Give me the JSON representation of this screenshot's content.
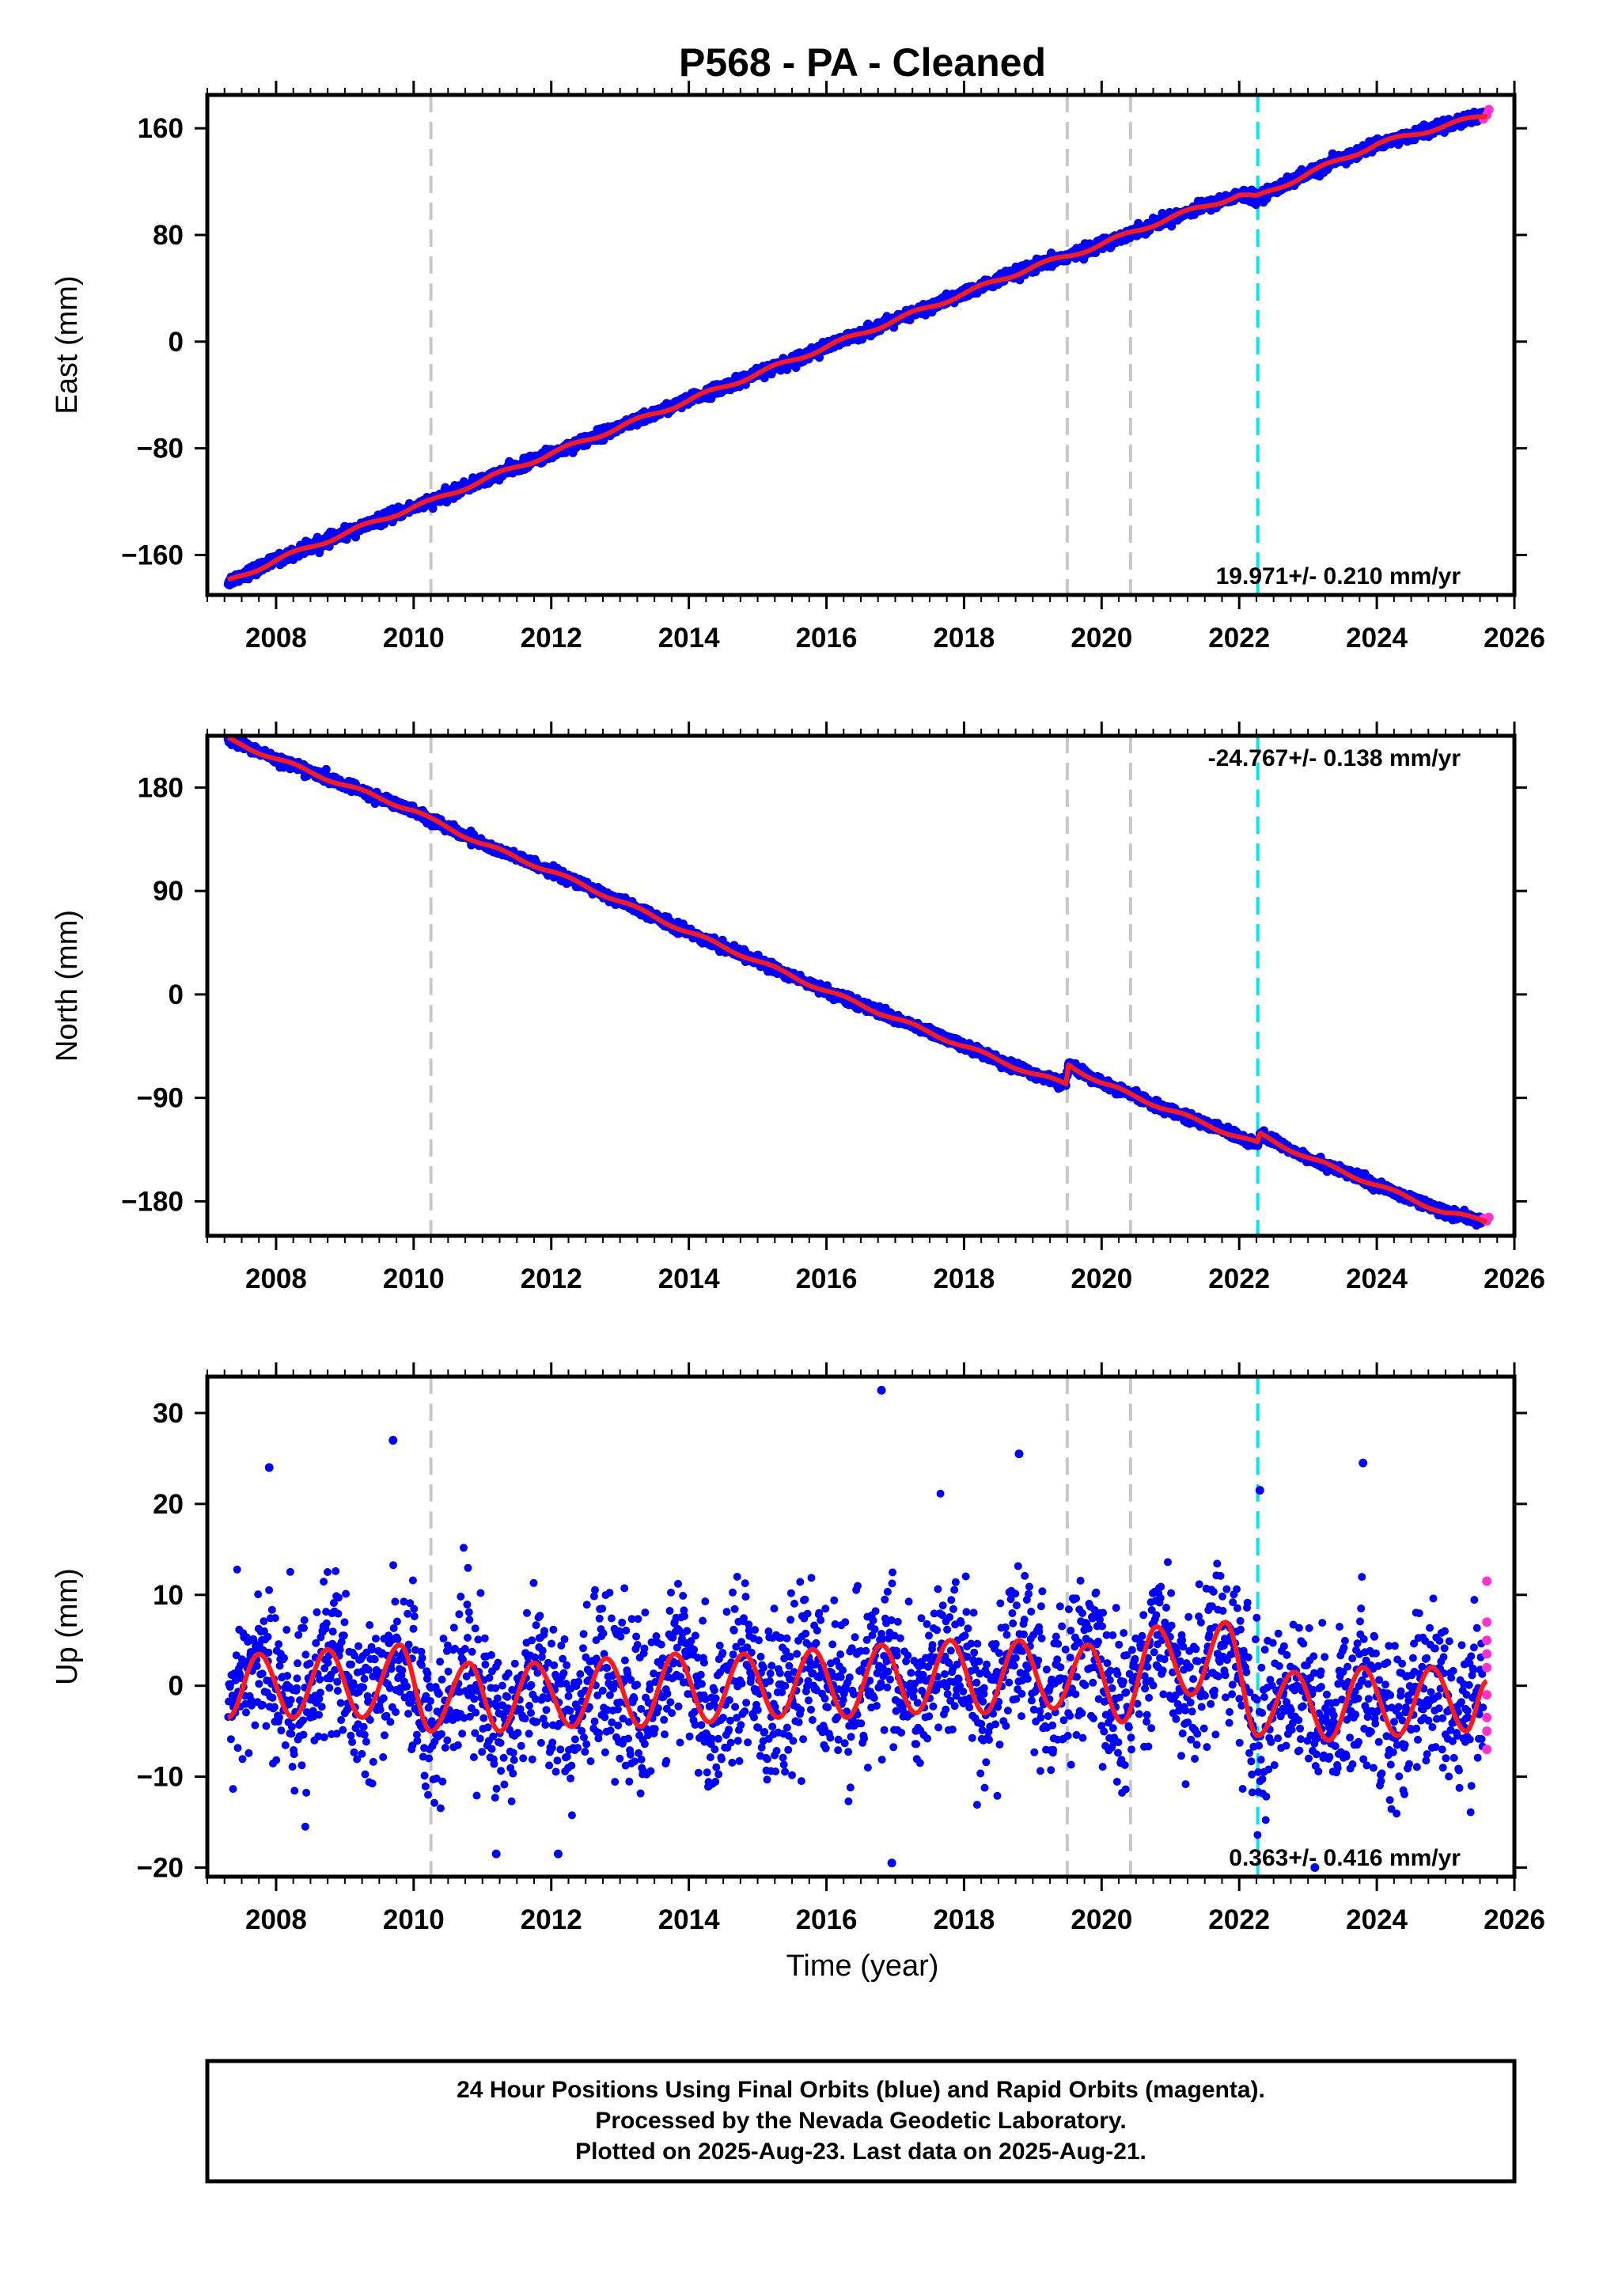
{
  "page_title": "P568  - PA - Cleaned",
  "x_axis_label": "Time (year)",
  "footer": {
    "line1": "24 Hour Positions Using Final Orbits (blue) and Rapid Orbits (magenta).",
    "line2": "Processed by the Nevada Geodetic Laboratory.",
    "line3": "Plotted on 2025-Aug-23. Last data on 2025-Aug-21."
  },
  "colors": {
    "final_orbits": "#0000ff",
    "rapid_orbits": "#ff33cc",
    "model": "#ff1a1a",
    "equipment_change": "#c8c8c8",
    "earthquake": "#00e5ee"
  },
  "chart_data": [
    {
      "type": "scatter",
      "component": "East",
      "ylabel": "East (mm)",
      "xlim": [
        2007.0,
        2026.0
      ],
      "ylim": [
        -190,
        185
      ],
      "x_ticks": [
        2008,
        2010,
        2012,
        2014,
        2016,
        2018,
        2020,
        2022,
        2024,
        2026
      ],
      "y_ticks": [
        -160,
        -80,
        0,
        80,
        160
      ],
      "rate_label": "19.971+/- 0.210 mm/yr",
      "rate_position": "bottom-right",
      "series": [
        {
          "kind": "final_orbits_points",
          "x": [
            2007.3,
            2008.0,
            2009.0,
            2010.0,
            2010.25,
            2011.0,
            2012.0,
            2013.0,
            2014.0,
            2015.0,
            2016.0,
            2017.0,
            2018.0,
            2019.0,
            2019.5,
            2020.0,
            2021.0,
            2022.0,
            2022.25,
            2023.0,
            2024.0,
            2025.0,
            2025.6
          ],
          "y": [
            -180,
            -163,
            -143,
            -124,
            -120,
            -104,
            -84,
            -64,
            -44,
            -24,
            -4,
            16,
            36,
            56,
            64,
            73,
            93,
            110,
            108,
            126,
            148,
            163,
            172
          ]
        },
        {
          "kind": "rapid_orbits_points",
          "x": [
            2025.55,
            2025.6,
            2025.63
          ],
          "y": [
            167,
            170,
            174
          ]
        },
        {
          "kind": "model_fit",
          "x": [
            2007.3,
            2008.0,
            2009.0,
            2010.0,
            2010.25,
            2011.0,
            2012.0,
            2013.0,
            2014.0,
            2015.0,
            2016.0,
            2017.0,
            2018.0,
            2019.0,
            2019.5,
            2020.0,
            2021.0,
            2022.0,
            2022.25,
            2023.0,
            2024.0,
            2025.0,
            2025.6
          ],
          "y": [
            -180,
            -164,
            -144,
            -124,
            -120,
            -104,
            -84,
            -64,
            -44,
            -24,
            -4,
            16,
            36,
            56,
            64,
            73,
            93,
            110,
            108,
            126,
            148,
            162,
            170
          ]
        }
      ],
      "steps": {
        "equipment_change": [
          2010.25,
          2019.5,
          2020.42
        ],
        "earthquake": [
          2022.27
        ]
      }
    },
    {
      "type": "scatter",
      "component": "North",
      "ylabel": "North (mm)",
      "xlim": [
        2007.0,
        2026.0
      ],
      "ylim": [
        -210,
        225
      ],
      "x_ticks": [
        2008,
        2010,
        2012,
        2014,
        2016,
        2018,
        2020,
        2022,
        2024,
        2026
      ],
      "y_ticks": [
        -180,
        -90,
        0,
        90,
        180
      ],
      "rate_label": "-24.767+/- 0.138 mm/yr",
      "rate_position": "top-right",
      "series": [
        {
          "kind": "final_orbits_points",
          "x": [
            2007.3,
            2008.0,
            2009.0,
            2010.0,
            2010.25,
            2011.0,
            2012.0,
            2013.0,
            2014.0,
            2015.0,
            2016.0,
            2017.0,
            2018.0,
            2019.0,
            2019.48,
            2019.52,
            2020.0,
            2021.0,
            2022.0,
            2022.27,
            2022.3,
            2023.0,
            2024.0,
            2025.0,
            2025.6
          ],
          "y": [
            222,
            205,
            182,
            160,
            152,
            131,
            107,
            81,
            54,
            29,
            3,
            -21,
            -45,
            -69,
            -78,
            -61,
            -77,
            -101,
            -124,
            -130,
            -122,
            -142,
            -166,
            -190,
            -197
          ]
        },
        {
          "kind": "rapid_orbits_points",
          "x": [
            2025.55,
            2025.6,
            2025.63
          ],
          "y": [
            -195,
            -197,
            -194
          ]
        },
        {
          "kind": "model_fit",
          "x": [
            2007.3,
            2008.0,
            2009.0,
            2010.0,
            2010.25,
            2011.0,
            2012.0,
            2013.0,
            2014.0,
            2015.0,
            2016.0,
            2017.0,
            2018.0,
            2019.0,
            2019.48,
            2019.52,
            2020.0,
            2021.0,
            2022.0,
            2022.27,
            2022.3,
            2023.0,
            2024.0,
            2025.0,
            2025.6
          ],
          "y": [
            222,
            205,
            182,
            160,
            152,
            131,
            107,
            81,
            54,
            29,
            3,
            -21,
            -45,
            -69,
            -78,
            -61,
            -77,
            -101,
            -124,
            -130,
            -122,
            -142,
            -166,
            -190,
            -197
          ]
        }
      ],
      "steps": {
        "equipment_change": [
          2010.25,
          2019.5,
          2020.42
        ],
        "earthquake": [
          2022.27
        ]
      }
    },
    {
      "type": "scatter",
      "component": "Up",
      "ylabel": "Up (mm)",
      "xlim": [
        2007.0,
        2026.0
      ],
      "ylim": [
        -21,
        34
      ],
      "x_ticks": [
        2008,
        2010,
        2012,
        2014,
        2016,
        2018,
        2020,
        2022,
        2024,
        2026
      ],
      "y_ticks": [
        -20,
        -10,
        0,
        10,
        20,
        30
      ],
      "rate_label": "0.363+/- 0.416 mm/yr",
      "rate_position": "bottom-right",
      "series": [
        {
          "kind": "final_orbits_points",
          "x": [
            2007.75,
            2008.25,
            2008.75,
            2009.25,
            2009.8,
            2010.3,
            2010.8,
            2011.25,
            2011.75,
            2012.3,
            2012.8,
            2013.3,
            2013.8,
            2014.3,
            2014.8,
            2015.3,
            2015.8,
            2016.3,
            2016.8,
            2017.3,
            2017.8,
            2018.3,
            2018.8,
            2019.3,
            2019.8,
            2020.3,
            2020.8,
            2021.3,
            2021.8,
            2022.3,
            2022.8,
            2023.3,
            2023.8,
            2024.3,
            2024.8,
            2025.3
          ],
          "y": [
            3.5,
            -3.5,
            4,
            -4,
            4.5,
            -5,
            2.5,
            -5,
            2.5,
            -4.5,
            3,
            -4.5,
            3.5,
            -4,
            3.5,
            -3.5,
            4,
            -3.5,
            4.5,
            -3,
            5,
            -3,
            5,
            -2.5,
            4.5,
            -4,
            6.5,
            -1,
            7,
            -5.5,
            1.5,
            -6,
            2,
            -5.5,
            2,
            -5
          ]
        },
        {
          "kind": "outliers",
          "x": [
            2007.9,
            2009.7,
            2016.8,
            2016.95,
            2018.8,
            2022.3,
            2023.8,
            2012.1,
            2011.2,
            2023.1
          ],
          "y": [
            24,
            27,
            32.5,
            -19.5,
            25.5,
            21.5,
            24.5,
            -18.5,
            -18.5,
            -20
          ]
        },
        {
          "kind": "rapid_orbits_points",
          "x": [
            2025.6,
            2025.6,
            2025.6,
            2025.6,
            2025.6,
            2025.6,
            2025.6,
            2025.6,
            2025.6
          ],
          "y": [
            11.5,
            7,
            5,
            3.5,
            2,
            -1,
            -3.5,
            -5,
            -7
          ]
        },
        {
          "kind": "model_fit",
          "x": [
            2007.3,
            2007.75,
            2008.25,
            2008.75,
            2009.25,
            2009.8,
            2010.25,
            2010.8,
            2011.25,
            2011.75,
            2012.3,
            2012.8,
            2013.3,
            2013.8,
            2014.3,
            2014.8,
            2015.3,
            2015.8,
            2016.3,
            2016.8,
            2017.3,
            2017.8,
            2018.3,
            2018.8,
            2019.3,
            2019.8,
            2020.3,
            2020.8,
            2021.3,
            2021.8,
            2022.27,
            2022.8,
            2023.3,
            2023.8,
            2024.3,
            2024.8,
            2025.3,
            2025.6
          ],
          "y": [
            -3.5,
            3.5,
            -3.5,
            4,
            -3.5,
            4.5,
            -5,
            2.5,
            -5,
            2.5,
            -4.5,
            3,
            -4.5,
            3.5,
            -4,
            3.5,
            -3.5,
            4,
            -3.5,
            4.5,
            -3,
            5,
            -3,
            5,
            -2.5,
            4.5,
            -4,
            6.5,
            -1,
            7,
            -5.5,
            1.5,
            -6,
            2,
            -5.5,
            2,
            -5,
            0.5
          ]
        }
      ],
      "steps": {
        "equipment_change": [
          2010.25,
          2019.5,
          2020.42
        ],
        "earthquake": [
          2022.27
        ]
      }
    }
  ]
}
